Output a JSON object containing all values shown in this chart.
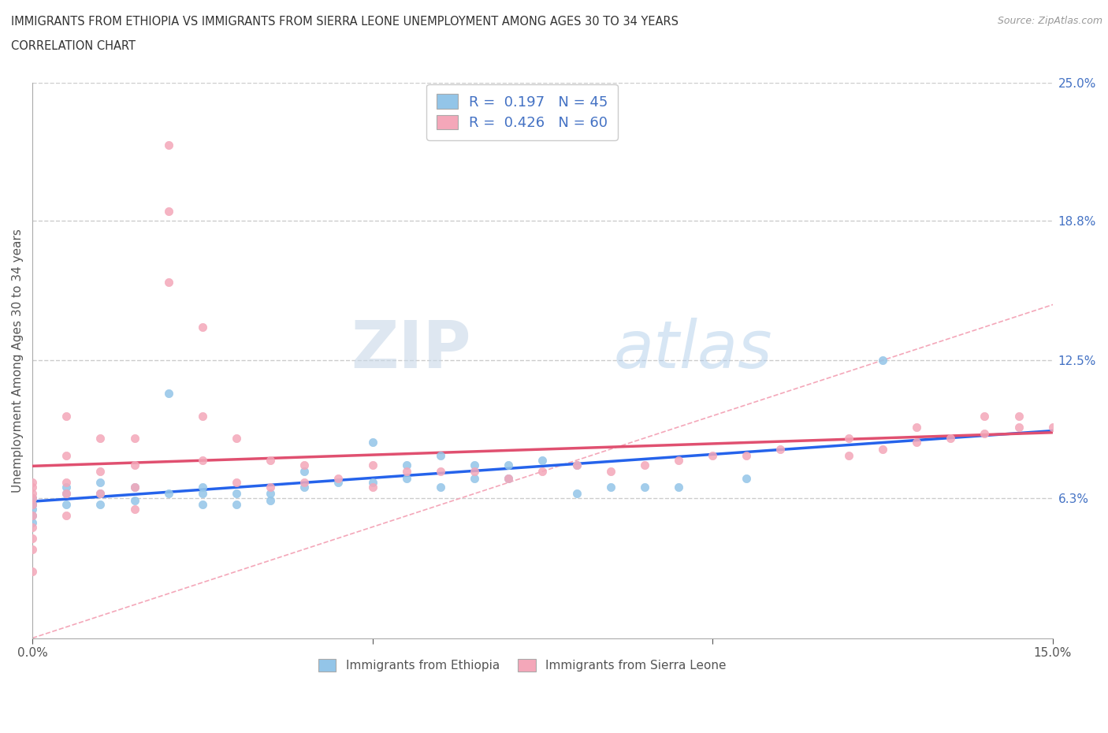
{
  "title_line1": "IMMIGRANTS FROM ETHIOPIA VS IMMIGRANTS FROM SIERRA LEONE UNEMPLOYMENT AMONG AGES 30 TO 34 YEARS",
  "title_line2": "CORRELATION CHART",
  "source_text": "Source: ZipAtlas.com",
  "ylabel": "Unemployment Among Ages 30 to 34 years",
  "xlim": [
    0.0,
    0.15
  ],
  "ylim": [
    0.0,
    0.25
  ],
  "y_tick_labels_right": [
    "6.3%",
    "12.5%",
    "18.8%",
    "25.0%"
  ],
  "y_tick_values": [
    0.063,
    0.125,
    0.188,
    0.25
  ],
  "legend_label1": "Immigrants from Ethiopia",
  "legend_label2": "Immigrants from Sierra Leone",
  "R1": "0.197",
  "N1": "45",
  "R2": "0.426",
  "N2": "60",
  "color_ethiopia": "#93C5E8",
  "color_sierra": "#F4A7B9",
  "color_trendline_ethiopia": "#2563EB",
  "color_trendline_sierra": "#E05070",
  "color_diagonal": "#F4A7B9",
  "watermark_zip": "ZIP",
  "watermark_atlas": "atlas",
  "ethiopia_x": [
    0.0,
    0.0,
    0.0,
    0.0,
    0.0,
    0.0,
    0.0,
    0.005,
    0.005,
    0.005,
    0.01,
    0.01,
    0.01,
    0.015,
    0.015,
    0.02,
    0.02,
    0.025,
    0.025,
    0.025,
    0.03,
    0.03,
    0.035,
    0.035,
    0.04,
    0.04,
    0.045,
    0.05,
    0.05,
    0.055,
    0.055,
    0.06,
    0.06,
    0.065,
    0.065,
    0.07,
    0.07,
    0.075,
    0.08,
    0.08,
    0.085,
    0.09,
    0.095,
    0.105,
    0.125
  ],
  "ethiopia_y": [
    0.063,
    0.063,
    0.06,
    0.06,
    0.058,
    0.055,
    0.052,
    0.068,
    0.065,
    0.06,
    0.07,
    0.065,
    0.06,
    0.068,
    0.062,
    0.11,
    0.065,
    0.068,
    0.065,
    0.06,
    0.065,
    0.06,
    0.065,
    0.062,
    0.075,
    0.068,
    0.07,
    0.088,
    0.07,
    0.078,
    0.072,
    0.082,
    0.068,
    0.078,
    0.072,
    0.078,
    0.072,
    0.08,
    0.078,
    0.065,
    0.068,
    0.068,
    0.068,
    0.072,
    0.125
  ],
  "sierra_x": [
    0.0,
    0.0,
    0.0,
    0.0,
    0.0,
    0.0,
    0.0,
    0.0,
    0.0,
    0.0,
    0.005,
    0.005,
    0.005,
    0.005,
    0.005,
    0.01,
    0.01,
    0.01,
    0.015,
    0.015,
    0.015,
    0.015,
    0.02,
    0.02,
    0.02,
    0.025,
    0.025,
    0.025,
    0.03,
    0.03,
    0.035,
    0.035,
    0.04,
    0.04,
    0.045,
    0.05,
    0.05,
    0.055,
    0.06,
    0.065,
    0.07,
    0.075,
    0.08,
    0.085,
    0.09,
    0.095,
    0.1,
    0.105,
    0.11,
    0.12,
    0.13,
    0.14,
    0.145,
    0.15,
    0.145,
    0.14,
    0.135,
    0.13,
    0.125,
    0.12
  ],
  "sierra_y": [
    0.07,
    0.068,
    0.065,
    0.063,
    0.06,
    0.055,
    0.05,
    0.045,
    0.04,
    0.03,
    0.1,
    0.082,
    0.07,
    0.065,
    0.055,
    0.09,
    0.075,
    0.065,
    0.09,
    0.078,
    0.068,
    0.058,
    0.222,
    0.192,
    0.16,
    0.14,
    0.1,
    0.08,
    0.09,
    0.07,
    0.08,
    0.068,
    0.078,
    0.07,
    0.072,
    0.078,
    0.068,
    0.075,
    0.075,
    0.075,
    0.072,
    0.075,
    0.078,
    0.075,
    0.078,
    0.08,
    0.082,
    0.082,
    0.085,
    0.09,
    0.095,
    0.1,
    0.1,
    0.095,
    0.095,
    0.092,
    0.09,
    0.088,
    0.085,
    0.082
  ]
}
